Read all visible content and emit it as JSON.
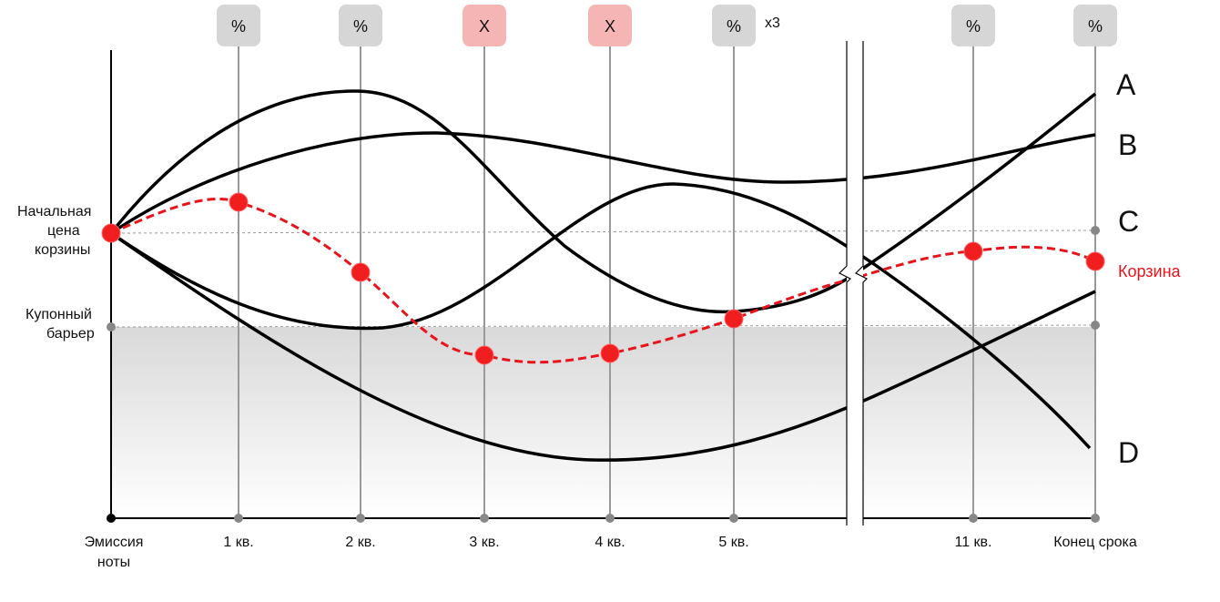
{
  "diagram": {
    "y_labels": {
      "initial_price": [
        "Начальная",
        "цена",
        "корзины"
      ],
      "coupon_barrier": [
        "Купонный",
        "барьер"
      ]
    },
    "x_labels": [
      [
        "Эмиссия",
        "ноты"
      ],
      [
        "1 кв."
      ],
      [
        "2 кв."
      ],
      [
        "3 кв."
      ],
      [
        "4 кв."
      ],
      [
        "5 кв."
      ],
      [
        "11 кв."
      ],
      [
        "Конец срока"
      ]
    ],
    "badges": [
      "%",
      "%",
      "X",
      "X",
      "%",
      "%",
      "%"
    ],
    "repeat_note": "x3",
    "line_labels": [
      "A",
      "B",
      "C",
      "D"
    ],
    "basket_label": "Корзина"
  }
}
